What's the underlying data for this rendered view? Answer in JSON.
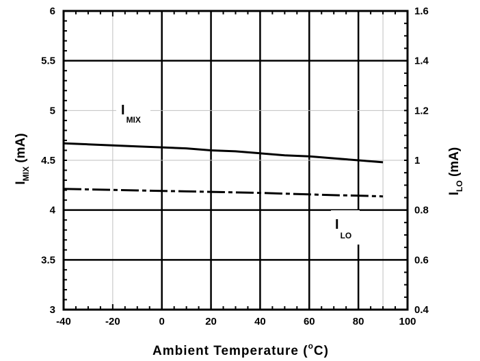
{
  "chart_data": {
    "type": "line",
    "title": "",
    "x": [
      -40,
      -30,
      -20,
      -10,
      0,
      10,
      20,
      30,
      40,
      50,
      60,
      70,
      80,
      90
    ],
    "xlabel": {
      "main": "Ambient Temperature (",
      "sup": "o",
      "tail": "C)"
    },
    "xlim": [
      -40,
      100
    ],
    "xticks": [
      -40,
      -20,
      0,
      20,
      40,
      60,
      80,
      100
    ],
    "xtick_labels": [
      "-40",
      "-20",
      "0",
      "20",
      "40",
      "60",
      "80",
      "100"
    ],
    "y_left": {
      "label": {
        "main": "I",
        "sub": "MIX",
        "tail": " (mA)"
      },
      "lim": [
        3,
        6
      ],
      "ticks": [
        3,
        3.5,
        4,
        4.5,
        5,
        5.5,
        6
      ],
      "tick_labels": [
        "3",
        "3.5",
        "4",
        "4.5",
        "5",
        "5.5",
        "6"
      ]
    },
    "y_right": {
      "label": {
        "main": "I",
        "sub": "LO",
        "tail": " (mA)"
      },
      "lim": [
        0.4,
        1.6
      ],
      "ticks": [
        0.4,
        0.6,
        0.8,
        1,
        1.2,
        1.4,
        1.6
      ],
      "tick_labels": [
        "0.4",
        "0.6",
        "0.8",
        "1",
        "1.2",
        "1.4",
        "1.6"
      ]
    },
    "series": [
      {
        "name": "IMIX",
        "axis": "left",
        "style": "solid",
        "values": [
          4.67,
          4.66,
          4.65,
          4.64,
          4.63,
          4.62,
          4.6,
          4.59,
          4.57,
          4.55,
          4.54,
          4.52,
          4.5,
          4.48
        ]
      },
      {
        "name": "ILO",
        "axis": "right",
        "style": "dashed",
        "values": [
          0.885,
          0.883,
          0.881,
          0.879,
          0.877,
          0.875,
          0.873,
          0.871,
          0.869,
          0.866,
          0.863,
          0.86,
          0.858,
          0.855
        ]
      }
    ],
    "annotations": [
      {
        "main": "I",
        "sub": "MIX"
      },
      {
        "main": "I",
        "sub": "LO"
      }
    ],
    "grid": true,
    "colors": {
      "line": "#000000",
      "background": "#ffffff",
      "minor_grid": "#bfbfbf"
    }
  }
}
